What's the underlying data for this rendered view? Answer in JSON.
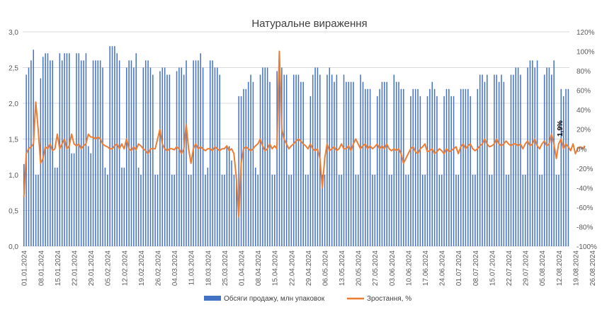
{
  "chart_data": {
    "type": "bar+line",
    "title": "Натуральне вираження",
    "y_left": {
      "ylim": [
        0,
        3.0
      ],
      "ticks": [
        "0,0",
        "0,5",
        "1,0",
        "1,5",
        "2,0",
        "2,5",
        "3,0"
      ]
    },
    "y_right": {
      "ylim": [
        -100,
        120
      ],
      "ticks": [
        "-100%",
        "-80%",
        "-60%",
        "-40%",
        "-20%",
        "0%",
        "20%",
        "40%",
        "60%",
        "80%",
        "100%",
        "120%"
      ]
    },
    "x_tick_labels": [
      "01.01.2024",
      "08.01.2024",
      "15.01.2024",
      "22.01.2024",
      "29.01.2024",
      "05.02.2024",
      "12.02.2024",
      "19.02.2024",
      "26.02.2024",
      "04.03.2024",
      "11.03.2024",
      "18.03.2024",
      "25.03.2024",
      "01.04.2024",
      "08.04.2024",
      "15.04.2024",
      "22.04.2024",
      "29.04.2024",
      "06.05.2024",
      "13.05.2024",
      "20.05.2024",
      "27.05.2024",
      "03.06.2024",
      "10.06.2024",
      "17.06.2024",
      "24.06.2024",
      "01.07.2024",
      "08.07.2024",
      "15.07.2024",
      "22.07.2024",
      "29.07.2024",
      "05.08.2024",
      "12.08.2024",
      "19.08.2024",
      "26.08.2024"
    ],
    "grid": true,
    "legend_position": "bottom",
    "colors": {
      "bars": "#4472c4",
      "line": "#ed7d31"
    },
    "annotation": "1,9%",
    "series": [
      {
        "name": "Обсяги продажу, млн упаковок",
        "axis": "left",
        "values": [
          1.15,
          2.4,
          2.5,
          2.6,
          2.75,
          1.0,
          1.0,
          2.35,
          2.65,
          2.7,
          2.7,
          2.6,
          2.6,
          1.1,
          1.1,
          2.7,
          2.6,
          2.7,
          2.7,
          2.7,
          1.3,
          1.3,
          2.7,
          2.7,
          2.6,
          2.6,
          2.7,
          1.4,
          1.3,
          2.6,
          2.6,
          2.6,
          2.6,
          2.5,
          1.1,
          1.0,
          2.8,
          2.8,
          2.8,
          2.7,
          2.6,
          1.1,
          1.1,
          2.5,
          2.6,
          2.6,
          2.5,
          2.7,
          1.1,
          1.0,
          2.5,
          2.6,
          2.6,
          2.5,
          2.4,
          1.0,
          1.0,
          2.45,
          2.5,
          2.5,
          2.4,
          2.4,
          1.0,
          1.0,
          2.45,
          2.5,
          2.5,
          2.4,
          2.6,
          1.0,
          1.0,
          2.6,
          2.6,
          2.6,
          2.7,
          2.5,
          1.0,
          1.1,
          2.6,
          2.6,
          2.5,
          2.5,
          2.4,
          1.0,
          1.0,
          1.4,
          1.4,
          1.2,
          1.0,
          1.0,
          2.1,
          2.1,
          2.2,
          2.2,
          2.3,
          2.4,
          2.3,
          1.1,
          1.0,
          2.4,
          2.5,
          2.5,
          2.5,
          2.3,
          1.0,
          1.0,
          2.45,
          2.5,
          2.5,
          2.4,
          2.4,
          1.0,
          1.0,
          2.4,
          2.4,
          2.4,
          2.3,
          2.3,
          1.0,
          1.0,
          2.1,
          2.4,
          2.5,
          2.5,
          2.4,
          1.0,
          1.0,
          2.4,
          2.5,
          2.4,
          2.3,
          2.4,
          1.0,
          1.0,
          2.4,
          2.3,
          2.3,
          2.3,
          2.3,
          1.0,
          1.0,
          2.4,
          2.3,
          2.2,
          2.2,
          2.2,
          1.0,
          1.0,
          2.1,
          2.2,
          2.3,
          2.3,
          2.3,
          1.0,
          1.0,
          2.4,
          2.3,
          2.3,
          2.2,
          2.2,
          1.0,
          1.0,
          2.1,
          2.2,
          2.2,
          2.2,
          2.1,
          1.0,
          1.0,
          2.1,
          2.2,
          2.3,
          2.2,
          2.1,
          1.0,
          1.0,
          2.1,
          2.2,
          2.2,
          2.1,
          2.1,
          1.0,
          1.0,
          2.2,
          2.2,
          2.2,
          2.2,
          2.1,
          1.0,
          1.0,
          2.2,
          2.4,
          2.4,
          2.3,
          2.4,
          1.0,
          1.0,
          2.4,
          2.4,
          2.3,
          2.4,
          2.3,
          1.0,
          1.0,
          2.4,
          2.4,
          2.5,
          2.5,
          2.4,
          1.0,
          1.0,
          2.5,
          2.6,
          2.6,
          2.5,
          2.6,
          1.0,
          1.0,
          2.4,
          2.5,
          2.5,
          2.4,
          2.6,
          1.0,
          1.0,
          2.2,
          2.1,
          2.2,
          2.2
        ],
        "note": "bar values estimated from chart"
      },
      {
        "name": "Зростання, %",
        "axis": "right",
        "values": [
          -50,
          -5,
          0,
          2,
          5,
          48,
          20,
          -15,
          -10,
          2,
          0,
          5,
          -2,
          0,
          15,
          0,
          5,
          10,
          0,
          3,
          15,
          5,
          3,
          5,
          0,
          3,
          5,
          15,
          12,
          12,
          10,
          12,
          10,
          5,
          3,
          2,
          0,
          0,
          3,
          5,
          0,
          5,
          0,
          10,
          0,
          -2,
          2,
          -1,
          5,
          3,
          0,
          -2,
          -5,
          0,
          0,
          0,
          10,
          20,
          5,
          0,
          -2,
          0,
          0,
          -1,
          2,
          0,
          -5,
          0,
          25,
          0,
          -15,
          0,
          5,
          0,
          2,
          0,
          -2,
          0,
          0,
          -2,
          2,
          0,
          -2,
          0,
          0,
          3,
          -2,
          0,
          -5,
          -30,
          -70,
          -15,
          0,
          2,
          0,
          -2,
          0,
          3,
          5,
          10,
          3,
          -2,
          0,
          5,
          0,
          3,
          0,
          100,
          20,
          10,
          5,
          0,
          3,
          5,
          8,
          10,
          8,
          5,
          3,
          0,
          5,
          0,
          -2,
          0,
          -10,
          -40,
          -10,
          5,
          -2,
          0,
          2,
          -2,
          0,
          5,
          0,
          0,
          3,
          -2,
          5,
          10,
          5,
          0,
          3,
          5,
          0,
          3,
          0,
          2,
          5,
          0,
          3,
          0,
          5,
          0,
          -2,
          0,
          -2,
          0,
          -5,
          -15,
          -10,
          -5,
          0,
          2,
          -3,
          -5,
          0,
          2,
          5,
          -3,
          -2,
          0,
          -5,
          -3,
          0,
          -2,
          -5,
          0,
          -3,
          -2,
          0,
          2,
          -5,
          2,
          5,
          0,
          3,
          5,
          0,
          -2,
          0,
          3,
          5,
          10,
          5,
          2,
          3,
          5,
          10,
          5,
          3,
          5,
          8,
          5,
          3,
          5,
          5,
          3,
          5,
          0,
          5,
          8,
          3,
          5,
          10,
          3,
          0,
          5,
          8,
          3,
          5,
          15,
          5,
          -10,
          5,
          10,
          0,
          5,
          2,
          -2,
          5,
          -5,
          0,
          2,
          0,
          3
        ]
      }
    ]
  }
}
